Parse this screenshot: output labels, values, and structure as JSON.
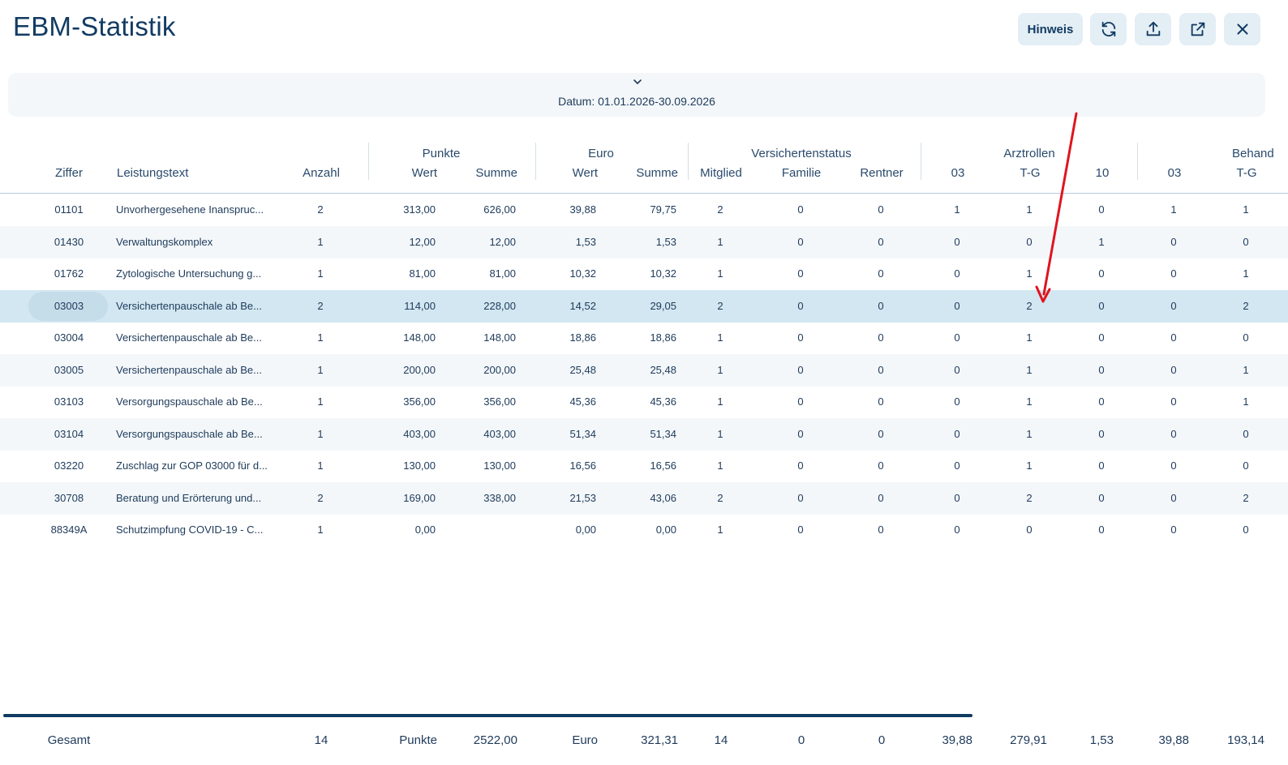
{
  "title": "EBM-Statistik",
  "toolbar": {
    "hinweis_label": "Hinweis",
    "icons": [
      "refresh-icon",
      "upload-icon",
      "external-link-icon",
      "close-icon"
    ]
  },
  "filter": {
    "date_label": "Datum: 01.01.2026-30.09.2026"
  },
  "table": {
    "groups": {
      "punkte": "Punkte",
      "euro": "Euro",
      "versichertenstatus": "Versichertenstatus",
      "arztrollen": "Arztrollen",
      "behand": "Behand"
    },
    "columns": [
      "Ziffer",
      "Leistungstext",
      "Anzahl",
      "Wert",
      "Summe",
      "Wert",
      "Summe",
      "Mitglied",
      "Familie",
      "Rentner",
      "03",
      "T-G",
      "10",
      "03",
      "T-G"
    ],
    "selected_row_index": 3,
    "rows": [
      [
        "01101",
        "Unvorhergesehene Inanspruc...",
        "2",
        "313,00",
        "626,00",
        "39,88",
        "79,75",
        "2",
        "0",
        "0",
        "1",
        "1",
        "0",
        "1",
        "1"
      ],
      [
        "01430",
        "Verwaltungskomplex",
        "1",
        "12,00",
        "12,00",
        "1,53",
        "1,53",
        "1",
        "0",
        "0",
        "0",
        "0",
        "1",
        "0",
        "0"
      ],
      [
        "01762",
        "Zytologische Untersuchung g...",
        "1",
        "81,00",
        "81,00",
        "10,32",
        "10,32",
        "1",
        "0",
        "0",
        "0",
        "1",
        "0",
        "0",
        "1"
      ],
      [
        "03003",
        "Versichertenpauschale ab Be...",
        "2",
        "114,00",
        "228,00",
        "14,52",
        "29,05",
        "2",
        "0",
        "0",
        "0",
        "2",
        "0",
        "0",
        "2"
      ],
      [
        "03004",
        "Versichertenpauschale ab Be...",
        "1",
        "148,00",
        "148,00",
        "18,86",
        "18,86",
        "1",
        "0",
        "0",
        "0",
        "1",
        "0",
        "0",
        "0"
      ],
      [
        "03005",
        "Versichertenpauschale ab Be...",
        "1",
        "200,00",
        "200,00",
        "25,48",
        "25,48",
        "1",
        "0",
        "0",
        "0",
        "1",
        "0",
        "0",
        "1"
      ],
      [
        "03103",
        "Versorgungspauschale ab Be...",
        "1",
        "356,00",
        "356,00",
        "45,36",
        "45,36",
        "1",
        "0",
        "0",
        "0",
        "1",
        "0",
        "0",
        "1"
      ],
      [
        "03104",
        "Versorgungspauschale ab Be...",
        "1",
        "403,00",
        "403,00",
        "51,34",
        "51,34",
        "1",
        "0",
        "0",
        "0",
        "1",
        "0",
        "0",
        "0"
      ],
      [
        "03220",
        "Zuschlag zur GOP 03000 für d...",
        "1",
        "130,00",
        "130,00",
        "16,56",
        "16,56",
        "1",
        "0",
        "0",
        "0",
        "1",
        "0",
        "0",
        "0"
      ],
      [
        "30708",
        "Beratung und Erörterung und...",
        "2",
        "169,00",
        "338,00",
        "21,53",
        "43,06",
        "2",
        "0",
        "0",
        "0",
        "2",
        "0",
        "0",
        "2"
      ],
      [
        "88349A",
        "Schutzimpfung COVID-19 - C...",
        "1",
        "0,00",
        "",
        "0,00",
        "0,00",
        "1",
        "0",
        "0",
        "0",
        "0",
        "0",
        "0",
        "0"
      ]
    ],
    "footer": {
      "label": "Gesamt",
      "anzahl": "14",
      "punkte_label": "Punkte",
      "punkte_summe": "2522,00",
      "euro_label": "Euro",
      "euro_summe": "321,31",
      "mitglied": "14",
      "familie": "0",
      "rentner": "0",
      "arzt_03": "39,88",
      "arzt_tg": "279,91",
      "arzt_10": "1,53",
      "behand_03": "39,88",
      "behand_tg": "193,14"
    }
  },
  "colors": {
    "title": "#123b62",
    "button_bg": "#e3eef5",
    "row_alt": "#f3f7fa",
    "row_selected": "#d2e7f1",
    "annotation_arrow": "#e0141e"
  }
}
